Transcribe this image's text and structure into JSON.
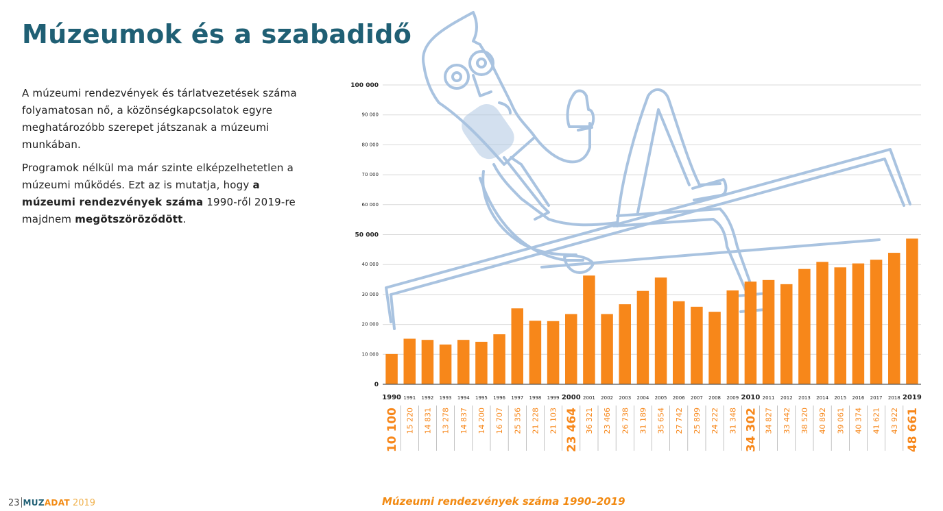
{
  "page": {
    "title": "Múzeumok és a szabadidő",
    "intro_p1": "A múzeumi rendezvények és tárlatvezetések száma folyamatosan nő, a közönségkapcsolatok egyre meghatározóbb szerepet játszanak a múzeumi munkában.",
    "intro_p2_a": "Programok nélkül ma már szinte elképzelhetetlen a múzeumi működés. Ezt az is mutatja, hogy ",
    "intro_p2_bold1": "a múzeumi rendezvények száma",
    "intro_p2_b": " 1990-ről 2019-re majdnem ",
    "intro_p2_bold2": "megötszöröződött",
    "intro_p2_c": "."
  },
  "footer": {
    "page_number": "23",
    "brand_muz": "MUZ",
    "brand_adat": "ADAT",
    "brand_year": "2019",
    "caption": "Múzeumi rendezvények száma 1990–2019"
  },
  "colors": {
    "bar": "#f7871a",
    "title": "#1f5f74",
    "illustration": "#a9c3e0",
    "grid": "#d9d9d9"
  },
  "illustration": {
    "icon": "seated-man-illustration"
  },
  "chart_data": {
    "type": "bar",
    "title": "Múzeumi rendezvények száma 1990–2019",
    "categories": [
      "1990",
      "1991",
      "1992",
      "1993",
      "1994",
      "1995",
      "1996",
      "1997",
      "1998",
      "1999",
      "2000",
      "2001",
      "2002",
      "2003",
      "2004",
      "2005",
      "2006",
      "2007",
      "2008",
      "2009",
      "2010",
      "2011",
      "2012",
      "2013",
      "2014",
      "2015",
      "2016",
      "2017",
      "2018",
      "2019"
    ],
    "values": [
      10100,
      15220,
      14831,
      13278,
      14837,
      14200,
      16707,
      25356,
      21228,
      21103,
      23464,
      36321,
      23466,
      26738,
      31189,
      35654,
      27742,
      25899,
      24222,
      31348,
      34302,
      34827,
      33442,
      38520,
      40892,
      39061,
      40374,
      41621,
      43922,
      48661
    ],
    "value_labels": [
      "10 100",
      "15 220",
      "14 831",
      "13 278",
      "14 837",
      "14 200",
      "16 707",
      "25 356",
      "21 228",
      "21 103",
      "23 464",
      "36 321",
      "23 466",
      "26 738",
      "31 189",
      "35 654",
      "27 742",
      "25 899",
      "24 222",
      "31 348",
      "34 302",
      "34 827",
      "33 442",
      "38 520",
      "40 892",
      "39 061",
      "40 374",
      "41 621",
      "43 922",
      "48 661"
    ],
    "highlight_years": [
      "1990",
      "2000",
      "2010",
      "2019"
    ],
    "yticks": [
      0,
      10000,
      20000,
      30000,
      40000,
      50000,
      60000,
      70000,
      80000,
      90000,
      100000
    ],
    "ytick_labels": [
      "0",
      "10 000",
      "20 000",
      "30 000",
      "40 000",
      "50 000",
      "60 000",
      "70 000",
      "80 000",
      "90 000",
      "100 000"
    ],
    "highlight_yticks": [
      "0",
      "50 000",
      "100 000"
    ],
    "ylim": [
      0,
      100000
    ],
    "grid": true,
    "xlabel": "",
    "ylabel": ""
  }
}
